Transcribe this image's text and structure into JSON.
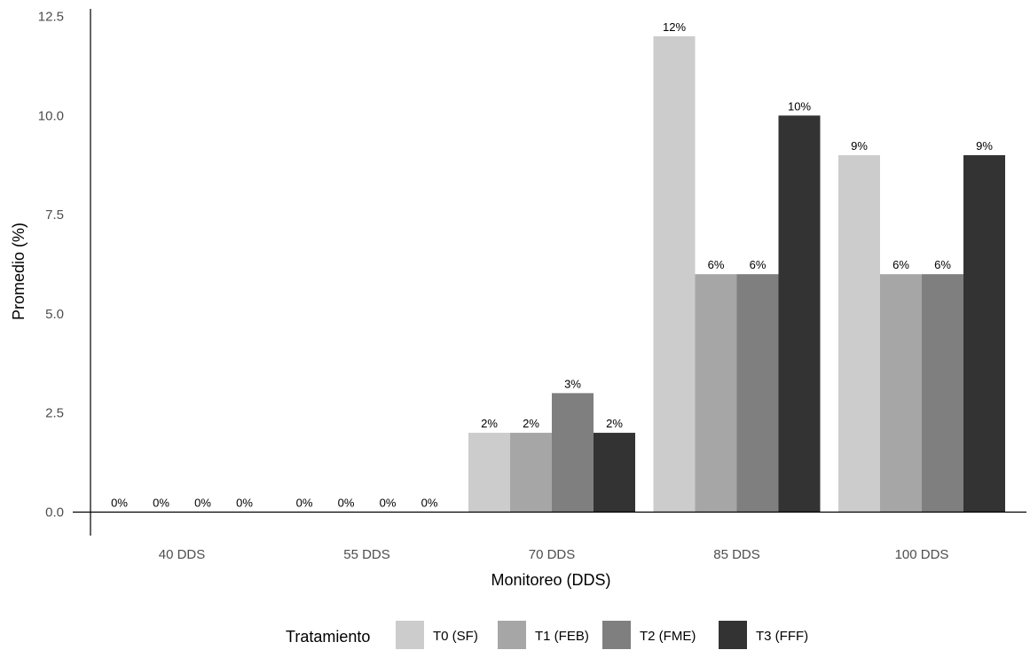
{
  "chart_data": {
    "type": "bar",
    "xlabel": "Monitoreo (DDS)",
    "ylabel": "Promedio (%)",
    "categories": [
      "40 DDS",
      "55 DDS",
      "70 DDS",
      "85 DDS",
      "100 DDS"
    ],
    "y_ticks": [
      "0.0",
      "2.5",
      "5.0",
      "7.5",
      "10.0",
      "12.5"
    ],
    "ylim": [
      0,
      12.5
    ],
    "grid": false,
    "legend": {
      "title": "Tratamiento",
      "position": "bottom"
    },
    "series": [
      {
        "name": "T0 (SF)",
        "color": "#cccccc",
        "values": [
          0,
          0,
          2,
          12,
          9
        ],
        "labels": [
          "0%",
          "0%",
          "2%",
          "12%",
          "9%"
        ]
      },
      {
        "name": "T1 (FEB)",
        "color": "#a6a6a6",
        "values": [
          0,
          0,
          2,
          6,
          6
        ],
        "labels": [
          "0%",
          "0%",
          "2%",
          "6%",
          "6%"
        ]
      },
      {
        "name": "T2 (FME)",
        "color": "#7f7f7f",
        "values": [
          0,
          0,
          3,
          6,
          6
        ],
        "labels": [
          "0%",
          "0%",
          "3%",
          "6%",
          "6%"
        ]
      },
      {
        "name": "T3 (FFF)",
        "color": "#333333",
        "values": [
          0,
          0,
          2,
          10,
          9
        ],
        "labels": [
          "0%",
          "0%",
          "2%",
          "10%",
          "9%"
        ]
      }
    ]
  }
}
